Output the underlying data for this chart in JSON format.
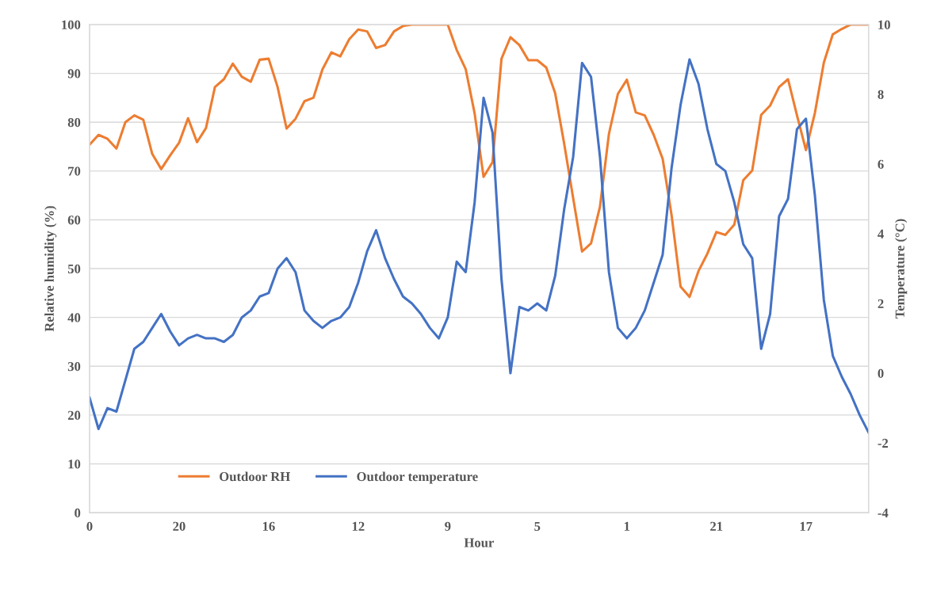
{
  "chart_data": {
    "type": "line",
    "xlabel": "Hour",
    "ylabel": "Relative humidity (%)",
    "y2label": "Temperature (°C)",
    "categories": [
      "0",
      null,
      null,
      null,
      null,
      null,
      null,
      null,
      null,
      null,
      "20",
      null,
      null,
      null,
      null,
      null,
      null,
      null,
      null,
      null,
      "16",
      null,
      null,
      null,
      null,
      null,
      null,
      null,
      null,
      null,
      "12",
      null,
      null,
      null,
      null,
      null,
      null,
      null,
      null,
      null,
      "9",
      null,
      null,
      null,
      null,
      null,
      null,
      null,
      null,
      null,
      "5",
      null,
      null,
      null,
      null,
      null,
      null,
      null,
      null,
      null,
      "1",
      null,
      null,
      null,
      null,
      null,
      null,
      null,
      null,
      null,
      "21",
      null,
      null,
      null,
      null,
      null,
      null,
      null,
      null,
      null,
      "17",
      null,
      null,
      null,
      null,
      null,
      null,
      null
    ],
    "ylim": [
      0,
      100
    ],
    "yticks": [
      0,
      10,
      20,
      30,
      40,
      50,
      60,
      70,
      80,
      90,
      100
    ],
    "y2lim": [
      -4,
      10
    ],
    "y2ticks": [
      -4,
      -2,
      0,
      2,
      4,
      6,
      8,
      10
    ],
    "grid": "y",
    "legend": "bottom left",
    "marker": "none",
    "line_style": "solid",
    "series": [
      {
        "name": "Outdoor RH",
        "color": "#ed7d31",
        "values": [
          75.4,
          77.4,
          76.6,
          74.6,
          80,
          81.4,
          80.5,
          73.5,
          70.4,
          73.2,
          75.8,
          80.8,
          75.9,
          78.8,
          87.2,
          88.8,
          92,
          89.3,
          88.3,
          92.8,
          93,
          87.2,
          78.7,
          80.7,
          84.3,
          85,
          90.8,
          94.3,
          93.5,
          97,
          99,
          98.6,
          95.2,
          95.8,
          98.6,
          99.7,
          100,
          100,
          100,
          100,
          100,
          94.8,
          90.9,
          81.8,
          68.8,
          71.8,
          93,
          97.4,
          95.8,
          92.7,
          92.7,
          91.2,
          85.9,
          75.6,
          64.5,
          53.5,
          55.2,
          62.7,
          77.6,
          85.8,
          88.7,
          82,
          81.4,
          77.4,
          72.5,
          60.9,
          46.3,
          44.2,
          49.5,
          53.1,
          57.5,
          56.9,
          59,
          68.1,
          70.1,
          81.5,
          83.4,
          87.2,
          88.8,
          81.4,
          74.3,
          81.9,
          92.2,
          98,
          99.1,
          100,
          100,
          100
        ]
      },
      {
        "name": "Outdoor temperature",
        "color": "#4472c4",
        "axis": "y2",
        "values": [
          -0.7,
          -1.6,
          -1.0,
          -1.1,
          -0.2,
          0.7,
          0.9,
          1.3,
          1.7,
          1.2,
          0.8,
          1.0,
          1.1,
          1.0,
          1.0,
          0.9,
          1.1,
          1.6,
          1.8,
          2.2,
          2.3,
          3.0,
          3.3,
          2.9,
          1.8,
          1.5,
          1.3,
          1.5,
          1.6,
          1.9,
          2.6,
          3.5,
          4.1,
          3.3,
          2.7,
          2.2,
          2.0,
          1.7,
          1.3,
          1.0,
          1.6,
          3.2,
          2.9,
          4.9,
          7.9,
          6.9,
          2.7,
          0.0,
          1.9,
          1.8,
          2.0,
          1.8,
          2.8,
          4.7,
          6.2,
          8.9,
          8.5,
          6.2,
          2.9,
          1.3,
          1.0,
          1.3,
          1.8,
          2.6,
          3.4,
          5.9,
          7.7,
          9.0,
          8.3,
          7.0,
          6.0,
          5.8,
          4.9,
          3.7,
          3.3,
          0.7,
          1.7,
          4.5,
          5.0,
          7.0,
          7.3,
          5.1,
          2.1,
          0.5,
          -0.1,
          -0.6,
          -1.2,
          -1.7
        ]
      }
    ]
  }
}
